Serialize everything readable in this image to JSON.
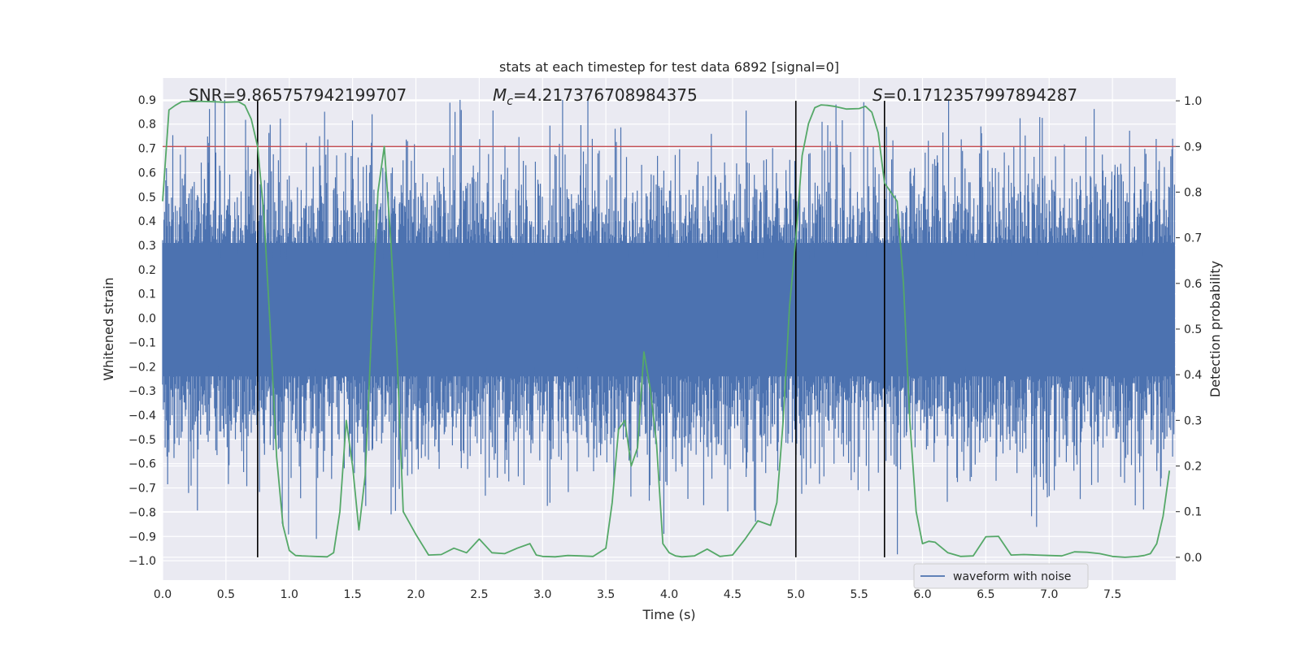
{
  "chart_data": {
    "type": "line",
    "title": "stats at each timestep for test data 6892 [signal=0]",
    "xlabel": "Time (s)",
    "ylabel": "Whitened strain",
    "y2label": "Detection probability",
    "xlim": [
      0.0,
      8.0
    ],
    "ylim": [
      -1.08,
      0.99
    ],
    "y2lim": [
      -0.05,
      1.05
    ],
    "xticks": [
      0.0,
      0.5,
      1.0,
      1.5,
      2.0,
      2.5,
      3.0,
      3.5,
      4.0,
      4.5,
      5.0,
      5.5,
      6.0,
      6.5,
      7.0,
      7.5
    ],
    "xtick_labels": [
      "0.0",
      "0.5",
      "1.0",
      "1.5",
      "2.0",
      "2.5",
      "3.0",
      "3.5",
      "4.0",
      "4.5",
      "5.0",
      "5.5",
      "6.0",
      "6.5",
      "7.0",
      "7.5"
    ],
    "yticks": [
      -1.0,
      -0.9,
      -0.8,
      -0.7,
      -0.6,
      -0.5,
      -0.4,
      -0.3,
      -0.2,
      -0.1,
      0.0,
      0.1,
      0.2,
      0.3,
      0.4,
      0.5,
      0.6,
      0.7,
      0.8,
      0.9
    ],
    "ytick_labels": [
      "−1.0",
      "−0.9",
      "−0.8",
      "−0.7",
      "−0.6",
      "−0.5",
      "−0.4",
      "−0.3",
      "−0.2",
      "−0.1",
      "0.0",
      "0.1",
      "0.2",
      "0.3",
      "0.4",
      "0.5",
      "0.6",
      "0.7",
      "0.8",
      "0.9"
    ],
    "y2ticks": [
      0.0,
      0.1,
      0.2,
      0.3,
      0.4,
      0.5,
      0.6,
      0.7,
      0.8,
      0.9,
      1.0
    ],
    "y2tick_labels": [
      "0.0",
      "0.1",
      "0.2",
      "0.3",
      "0.4",
      "0.5",
      "0.6",
      "0.7",
      "0.8",
      "0.9",
      "1.0"
    ],
    "grid": true,
    "legend": {
      "location": "lower-right",
      "entries": [
        "waveform with noise"
      ]
    },
    "annotations": {
      "snr_text": "SNR=9.865757942199707",
      "mc_symbol": "M",
      "mc_subscript": "c",
      "mc_value": "=4.217376708984375",
      "s_symbol": "S",
      "s_value": "=0.1712357997894287"
    },
    "threshold_y2": 0.9,
    "vertical_lines_x": [
      0.75,
      5.0,
      5.7
    ],
    "waveform": {
      "name": "waveform with noise",
      "color": "#4c72b0",
      "n_samples": 1600,
      "dense_band": [
        -0.24,
        0.31
      ],
      "noise_std": 0.22,
      "clip_range": [
        -0.99,
        0.9
      ]
    },
    "detection_probability": {
      "color": "#55a868",
      "t": [
        0.0,
        0.05,
        0.1,
        0.15,
        0.2,
        0.3,
        0.4,
        0.5,
        0.6,
        0.65,
        0.7,
        0.75,
        0.8,
        0.85,
        0.9,
        0.95,
        1.0,
        1.05,
        1.1,
        1.2,
        1.3,
        1.35,
        1.4,
        1.45,
        1.5,
        1.55,
        1.6,
        1.65,
        1.7,
        1.75,
        1.8,
        1.85,
        1.9,
        2.0,
        2.1,
        2.2,
        2.3,
        2.4,
        2.5,
        2.6,
        2.7,
        2.8,
        2.9,
        2.95,
        3.0,
        3.1,
        3.2,
        3.3,
        3.4,
        3.5,
        3.55,
        3.6,
        3.65,
        3.7,
        3.75,
        3.8,
        3.85,
        3.9,
        3.95,
        4.0,
        4.05,
        4.1,
        4.2,
        4.3,
        4.4,
        4.5,
        4.6,
        4.7,
        4.8,
        4.85,
        4.9,
        4.95,
        5.0,
        5.05,
        5.1,
        5.15,
        5.2,
        5.25,
        5.3,
        5.4,
        5.5,
        5.55,
        5.6,
        5.65,
        5.7,
        5.75,
        5.8,
        5.85,
        5.9,
        5.95,
        6.0,
        6.05,
        6.1,
        6.2,
        6.3,
        6.4,
        6.5,
        6.6,
        6.7,
        6.8,
        6.9,
        7.0,
        7.1,
        7.2,
        7.3,
        7.4,
        7.5,
        7.6,
        7.7,
        7.75,
        7.8,
        7.85,
        7.9,
        7.95
      ],
      "p": [
        0.78,
        0.98,
        0.99,
        0.998,
        0.999,
        0.999,
        0.998,
        0.997,
        0.998,
        0.99,
        0.96,
        0.9,
        0.75,
        0.5,
        0.22,
        0.07,
        0.015,
        0.004,
        0.003,
        0.002,
        0.001,
        0.01,
        0.1,
        0.3,
        0.2,
        0.06,
        0.18,
        0.5,
        0.8,
        0.9,
        0.7,
        0.45,
        0.1,
        0.05,
        0.005,
        0.006,
        0.02,
        0.01,
        0.04,
        0.01,
        0.008,
        0.02,
        0.03,
        0.005,
        0.002,
        0.001,
        0.004,
        0.003,
        0.002,
        0.02,
        0.12,
        0.28,
        0.3,
        0.2,
        0.24,
        0.45,
        0.37,
        0.25,
        0.03,
        0.01,
        0.003,
        0.001,
        0.003,
        0.018,
        0.002,
        0.005,
        0.04,
        0.08,
        0.07,
        0.12,
        0.3,
        0.55,
        0.7,
        0.88,
        0.95,
        0.985,
        0.991,
        0.99,
        0.988,
        0.982,
        0.983,
        0.988,
        0.975,
        0.93,
        0.82,
        0.8,
        0.78,
        0.6,
        0.3,
        0.1,
        0.03,
        0.035,
        0.033,
        0.01,
        0.002,
        0.003,
        0.045,
        0.046,
        0.005,
        0.006,
        0.005,
        0.004,
        0.003,
        0.012,
        0.011,
        0.008,
        0.002,
        0.0,
        0.002,
        0.004,
        0.008,
        0.03,
        0.09,
        0.19
      ]
    }
  }
}
